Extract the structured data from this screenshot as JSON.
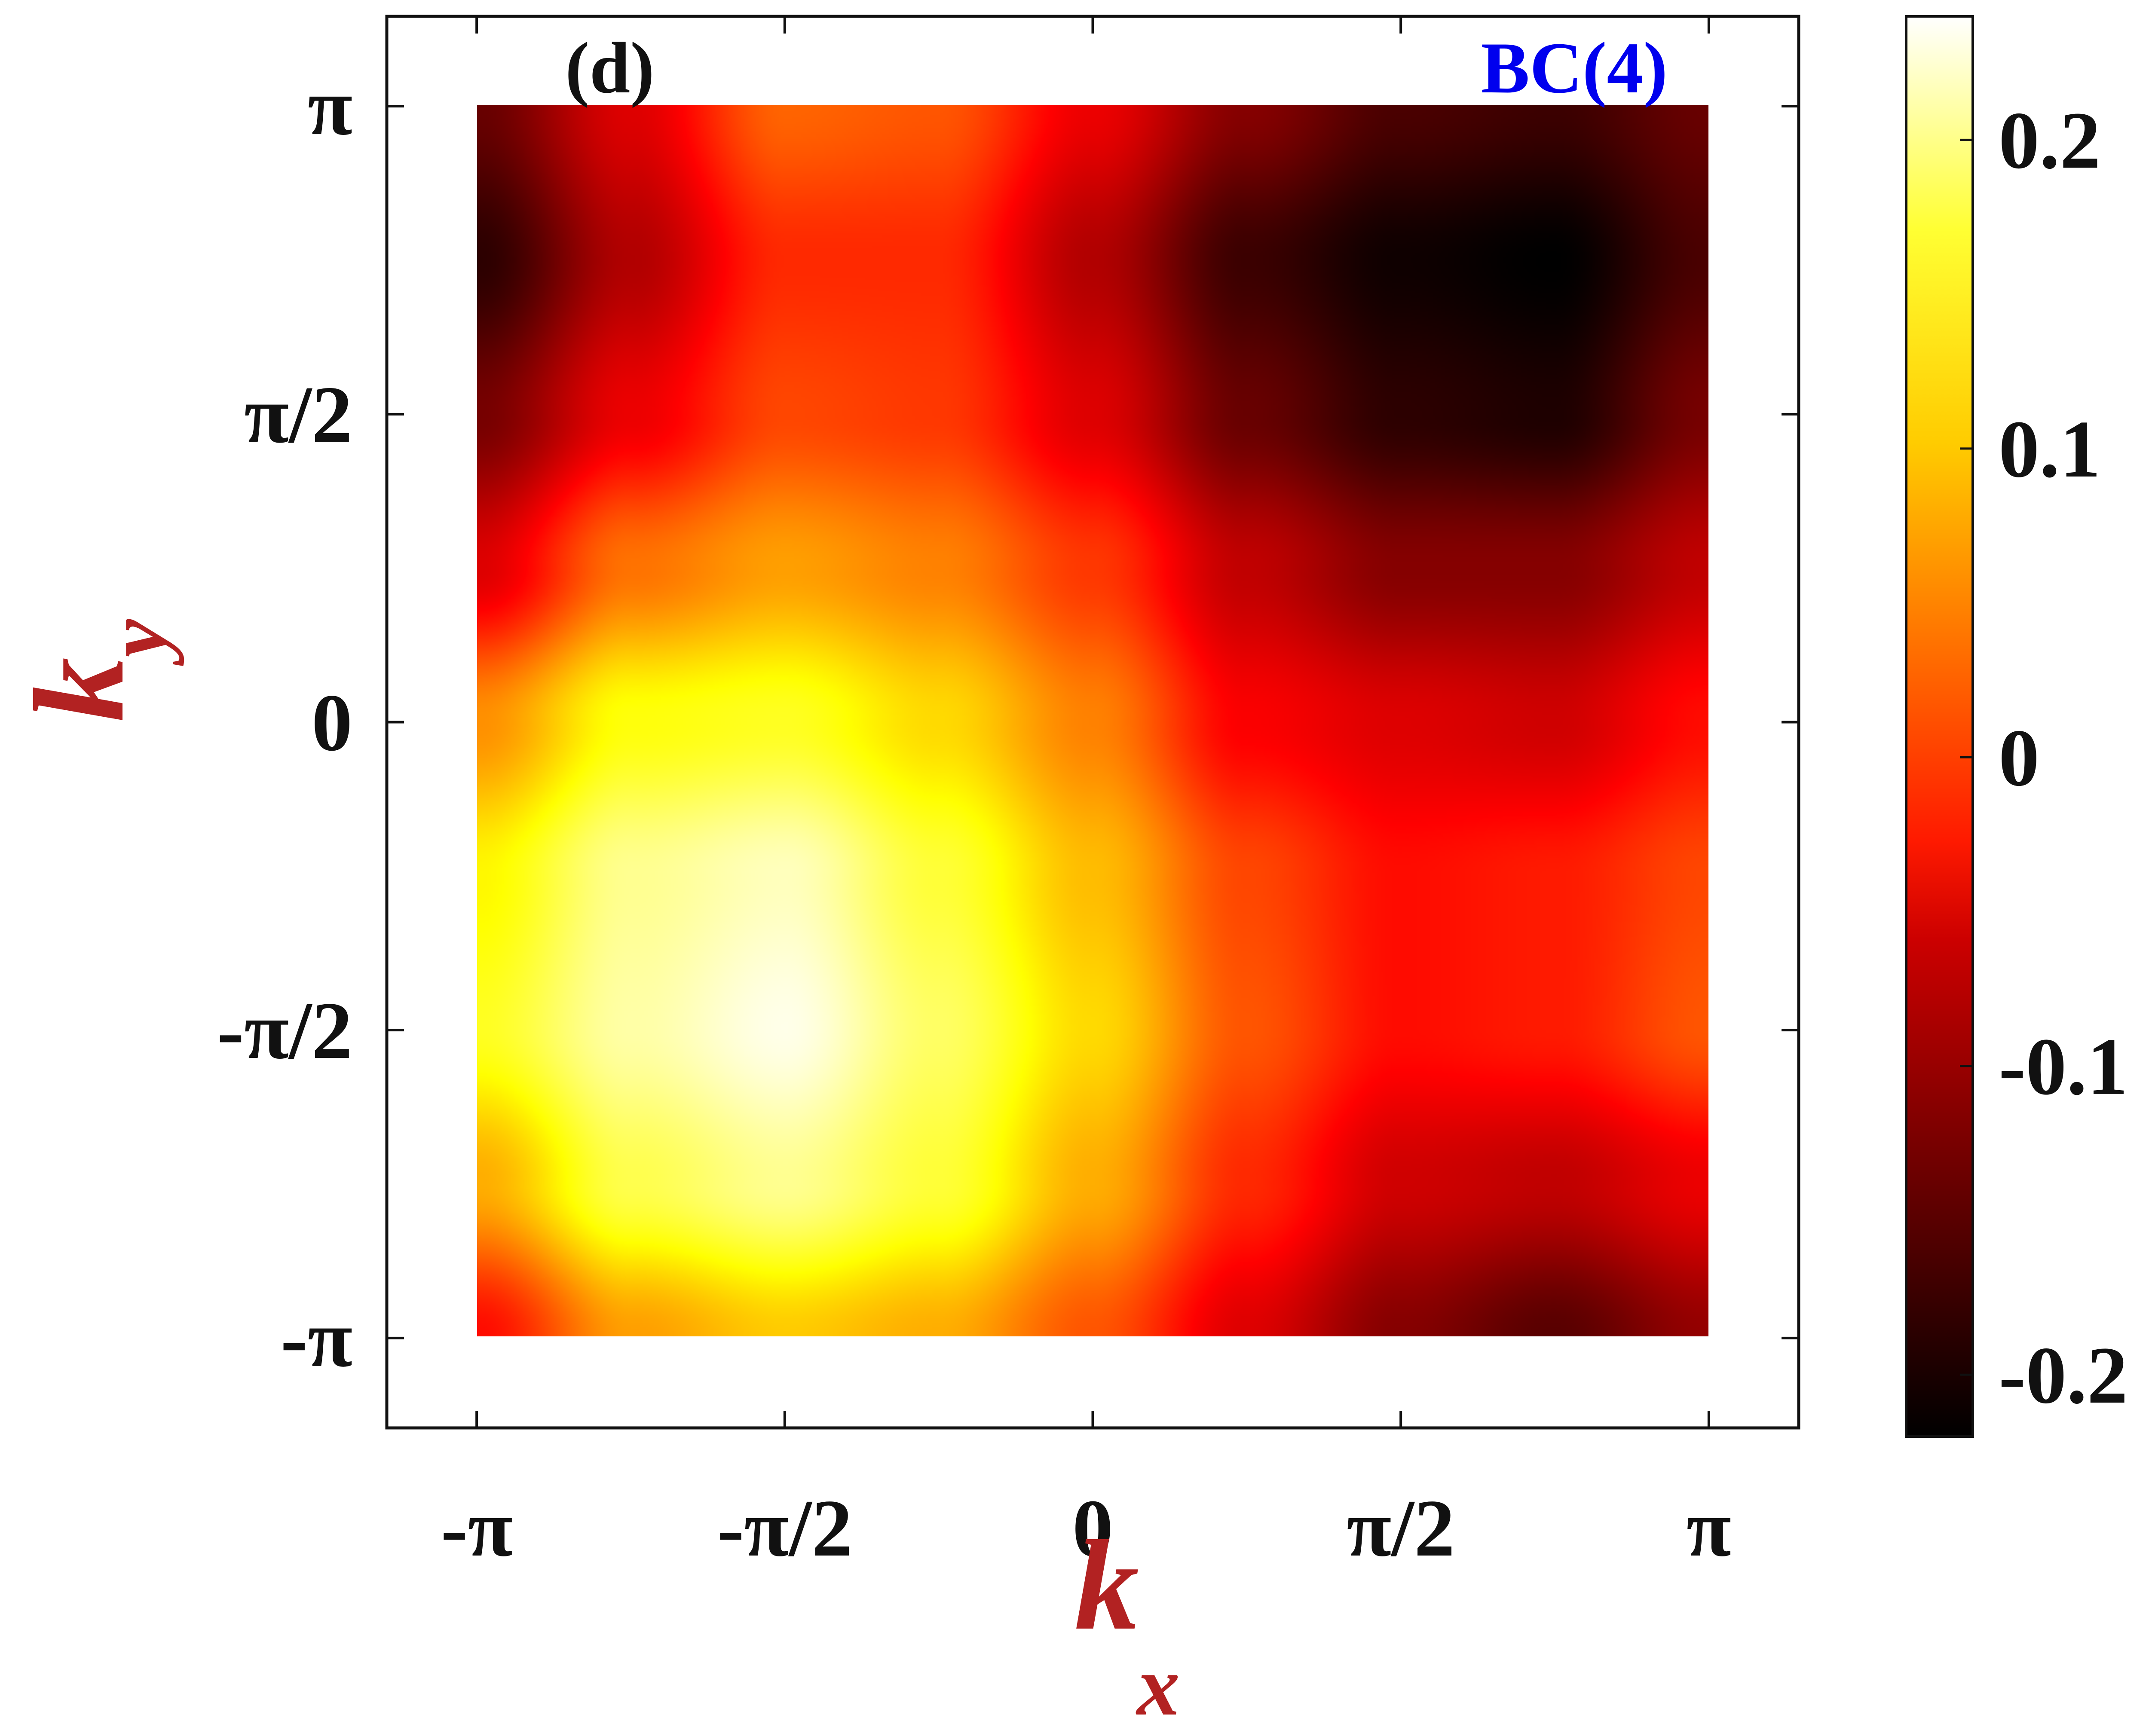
{
  "chart_data": {
    "type": "heatmap",
    "panel_label": "(d)",
    "title": "BC(4)",
    "title_color": "#0000ee",
    "xlabel_main": "k",
    "xlabel_sub": "x",
    "ylabel_main": "k",
    "ylabel_sub": "y",
    "label_color": "#b22222",
    "x_range": [
      -3.14159,
      3.14159
    ],
    "y_range": [
      -3.14159,
      3.14159
    ],
    "xlim": [
      -3.6,
      3.6
    ],
    "ylim": [
      -3.6,
      3.6
    ],
    "x_ticks": [
      {
        "value": -3.14159,
        "label": "-π"
      },
      {
        "value": -1.5708,
        "label": "-π/2"
      },
      {
        "value": 0,
        "label": "0"
      },
      {
        "value": 1.5708,
        "label": "π/2"
      },
      {
        "value": 3.14159,
        "label": "π"
      }
    ],
    "y_ticks": [
      {
        "value": -3.14159,
        "label": "-π"
      },
      {
        "value": -1.5708,
        "label": "-π/2"
      },
      {
        "value": 0,
        "label": "0"
      },
      {
        "value": 1.5708,
        "label": "π/2"
      },
      {
        "value": 3.14159,
        "label": "π"
      }
    ],
    "colormap": "hot",
    "colorbar": {
      "range": [
        -0.22,
        0.24
      ],
      "ticks": [
        {
          "value": -0.2,
          "label": "-0.2"
        },
        {
          "value": -0.1,
          "label": "-0.1"
        },
        {
          "value": 0,
          "label": "0"
        },
        {
          "value": 0.1,
          "label": "0.1"
        },
        {
          "value": 0.2,
          "label": "0.2"
        }
      ]
    },
    "grid": false,
    "z_estimate": {
      "x": [
        -3.14159,
        -2.35619,
        -1.5708,
        -0.7854,
        0,
        0.7854,
        1.5708,
        2.35619,
        3.14159
      ],
      "y": [
        3.14159,
        2.35619,
        1.5708,
        0.7854,
        0,
        -0.7854,
        -1.5708,
        -2.35619,
        -3.14159
      ],
      "values": [
        [
          -0.15,
          -0.07,
          0.02,
          0.01,
          -0.06,
          -0.13,
          -0.17,
          -0.18,
          -0.15
        ],
        [
          -0.19,
          -0.1,
          -0.02,
          -0.02,
          -0.1,
          -0.18,
          -0.21,
          -0.22,
          -0.17
        ],
        [
          -0.14,
          -0.06,
          0.0,
          -0.01,
          -0.07,
          -0.15,
          -0.19,
          -0.2,
          -0.14
        ],
        [
          -0.07,
          0.03,
          0.06,
          0.04,
          -0.01,
          -0.09,
          -0.13,
          -0.13,
          -0.09
        ],
        [
          0.05,
          0.13,
          0.14,
          0.1,
          0.04,
          -0.05,
          -0.07,
          -0.08,
          -0.04
        ],
        [
          0.12,
          0.19,
          0.21,
          0.15,
          0.08,
          0.0,
          -0.04,
          -0.03,
          0.0
        ],
        [
          0.14,
          0.2,
          0.23,
          0.17,
          0.1,
          0.01,
          -0.04,
          -0.03,
          0.01
        ],
        [
          0.07,
          0.16,
          0.19,
          0.15,
          0.07,
          -0.02,
          -0.08,
          -0.09,
          -0.06
        ],
        [
          -0.04,
          0.06,
          0.09,
          0.07,
          0.01,
          -0.07,
          -0.13,
          -0.16,
          -0.12
        ]
      ]
    }
  }
}
